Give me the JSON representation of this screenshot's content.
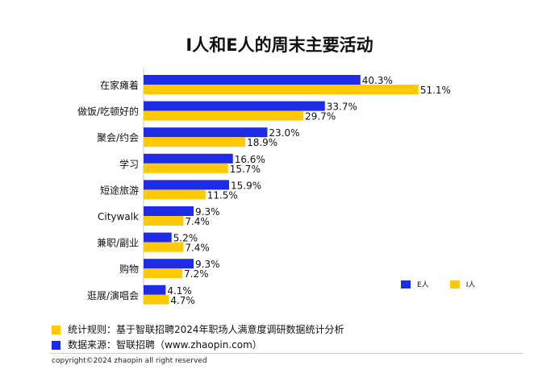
{
  "title": "I人和E人的周末主要活动",
  "colors": {
    "E": "#1f2ce6",
    "I": "#ffc908"
  },
  "legend": {
    "e_label": "E人",
    "i_label": "I人"
  },
  "chart_data": {
    "type": "bar",
    "orientation": "horizontal",
    "title": "I人和E人的周末主要活动",
    "categories": [
      "在家瘫着",
      "做饭/吃顿好的",
      "聚会/约会",
      "学习",
      "短途旅游",
      "Citywalk",
      "兼职/副业",
      "购物",
      "逛展/演唱会"
    ],
    "series": [
      {
        "name": "E人",
        "values": [
          40.3,
          33.7,
          23.0,
          16.6,
          15.9,
          9.3,
          5.2,
          9.3,
          4.1
        ],
        "labels": [
          "40.3%",
          "33.7%",
          "23.0%",
          "16.6%",
          "15.9%",
          "9.3%",
          "5.2%",
          "9.3%",
          "4.1%"
        ]
      },
      {
        "name": "I人",
        "values": [
          51.1,
          29.7,
          18.9,
          15.7,
          11.5,
          7.4,
          7.4,
          7.2,
          4.7
        ],
        "labels": [
          "51.1%",
          "29.7%",
          "18.9%",
          "15.7%",
          "11.5%",
          "7.4%",
          "7.4%",
          "7.2%",
          "4.7%"
        ]
      }
    ],
    "unit": "%",
    "grid": false,
    "legend_position": "bottom-right"
  },
  "notes": {
    "rule": "统计规则：基于智联招聘2024年职场人满意度调研数据统计分析",
    "source": "数据来源：智联招聘（www.zhaopin.com）"
  },
  "copyright": "copyright©2024 zhaopin all right reserved"
}
